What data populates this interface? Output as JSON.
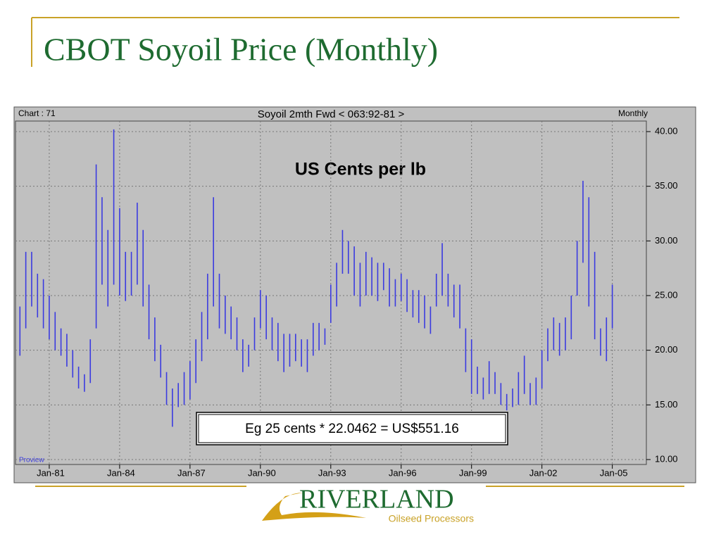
{
  "title": "CBOT Soyoil Price (Monthly)",
  "chart_data": {
    "type": "highlow",
    "header_left": "Chart : 71",
    "title": "Soyoil  2mth Fwd < 063:92-81 >",
    "header_right": "Monthly",
    "subtitle": "US Cents per lb",
    "annotation": "Eg 25 cents * 22.0462 = US$551.16",
    "footer_left": "Proview",
    "color": "#3a3ae0",
    "grid": true,
    "ylim": [
      10,
      40
    ],
    "yticks": [
      {
        "value": 10,
        "label": "10.00"
      },
      {
        "value": 15,
        "label": "15.00"
      },
      {
        "value": 20,
        "label": "20.00"
      },
      {
        "value": 25,
        "label": "25.00"
      },
      {
        "value": 30,
        "label": "30.00"
      },
      {
        "value": 35,
        "label": "35.00"
      },
      {
        "value": 40,
        "label": "40.00"
      }
    ],
    "categories": [
      null,
      null,
      null,
      null,
      null,
      "Jan-81",
      null,
      null,
      null,
      null,
      null,
      null,
      null,
      null,
      null,
      null,
      null,
      "Jan-84",
      null,
      null,
      null,
      null,
      null,
      null,
      null,
      null,
      null,
      null,
      null,
      "Jan-87",
      null,
      null,
      null,
      null,
      null,
      null,
      null,
      null,
      null,
      null,
      null,
      "Jan-90",
      null,
      null,
      null,
      null,
      null,
      null,
      null,
      null,
      null,
      null,
      null,
      "Jan-93",
      null,
      null,
      null,
      null,
      null,
      null,
      null,
      null,
      null,
      null,
      null,
      "Jan-96",
      null,
      null,
      null,
      null,
      null,
      null,
      null,
      null,
      null,
      null,
      null,
      "Jan-99",
      null,
      null,
      null,
      null,
      null,
      null,
      null,
      null,
      null,
      null,
      null,
      "Jan-02",
      null,
      null,
      null,
      null,
      null,
      null,
      null,
      null,
      null,
      null,
      null,
      "Jan-05"
    ],
    "high": [
      24,
      29,
      29,
      27,
      26.5,
      25,
      23.5,
      22,
      21.5,
      20,
      18.5,
      17.8,
      21,
      37,
      34,
      31,
      40.2,
      33,
      29,
      29,
      33.5,
      31,
      26,
      23,
      20.5,
      18,
      16.5,
      17,
      18,
      19,
      21,
      23.5,
      27,
      34,
      27,
      25,
      24,
      23,
      21,
      20.5,
      23,
      25.5,
      25,
      23,
      22.5,
      21.5,
      21.5,
      21.5,
      21,
      21,
      22.5,
      22.5,
      22,
      26,
      28,
      31,
      30,
      29.5,
      28,
      29,
      28.5,
      28,
      28,
      27.5,
      26.5,
      27,
      26.5,
      25.5,
      25.5,
      25,
      24,
      27,
      29.8,
      27,
      26,
      26,
      22,
      21,
      18.5,
      17.5,
      19,
      18,
      17,
      16,
      16.5,
      18,
      19.5,
      17,
      17.5,
      20,
      22,
      23,
      22.5,
      23,
      25,
      30,
      35.5,
      34,
      29,
      22,
      23,
      26
    ],
    "low": [
      19.5,
      22,
      24,
      23,
      22,
      21,
      20,
      19.5,
      18.5,
      17.5,
      16.5,
      16.2,
      17,
      22,
      26,
      24,
      26,
      25,
      24.5,
      25,
      26,
      24,
      21,
      19,
      17.5,
      15,
      13,
      14.8,
      15,
      15.5,
      17,
      19,
      21,
      24,
      22,
      21.5,
      21,
      20,
      18,
      18.5,
      20,
      22,
      21,
      20,
      19,
      18,
      18.5,
      19,
      18.5,
      18,
      19.5,
      20,
      20.5,
      22.5,
      24,
      27,
      27,
      25,
      24,
      25,
      25,
      24.5,
      25.5,
      24,
      24,
      24.5,
      23.5,
      23,
      22.5,
      22,
      21.5,
      24,
      25,
      24,
      23,
      22,
      18,
      16,
      16,
      15.5,
      16,
      16,
      15,
      14.5,
      14.8,
      15,
      16,
      15,
      15,
      16.5,
      19,
      20,
      19.5,
      20,
      21,
      25,
      28,
      24,
      21,
      19.5,
      19,
      22
    ]
  },
  "logo": {
    "name": "RIVERLAND",
    "tagline": "Oilseed Processors"
  }
}
